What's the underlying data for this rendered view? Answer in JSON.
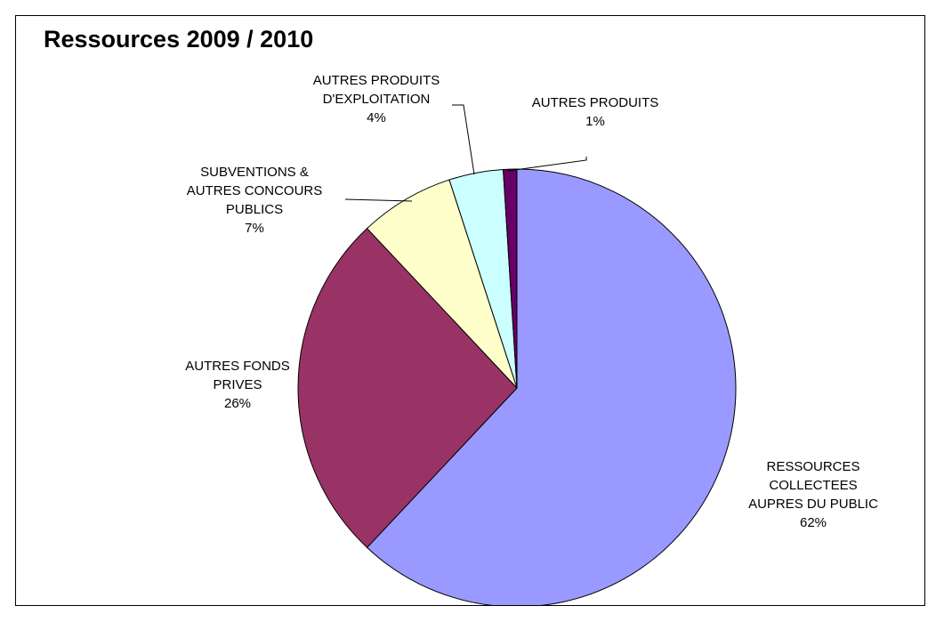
{
  "chart_data": {
    "type": "pie",
    "title": "Ressources 2009 / 2010",
    "slices": [
      {
        "lines": [
          "RESSOURCES",
          "COLLECTEES",
          "AUPRES DU PUBLIC"
        ],
        "percent_label": "62%",
        "value": 62,
        "color": "#9999ff"
      },
      {
        "lines": [
          "AUTRES FONDS",
          "PRIVES"
        ],
        "percent_label": "26%",
        "value": 26,
        "color": "#993366"
      },
      {
        "lines": [
          "SUBVENTIONS &",
          "AUTRES CONCOURS",
          "PUBLICS"
        ],
        "percent_label": "7%",
        "value": 7,
        "color": "#ffffcc"
      },
      {
        "lines": [
          "AUTRES PRODUITS",
          "D'EXPLOITATION"
        ],
        "percent_label": "4%",
        "value": 4,
        "color": "#ccffff"
      },
      {
        "lines": [
          "AUTRES PRODUITS"
        ],
        "percent_label": "1%",
        "value": 1,
        "color": "#660066"
      }
    ],
    "legend": "none"
  }
}
